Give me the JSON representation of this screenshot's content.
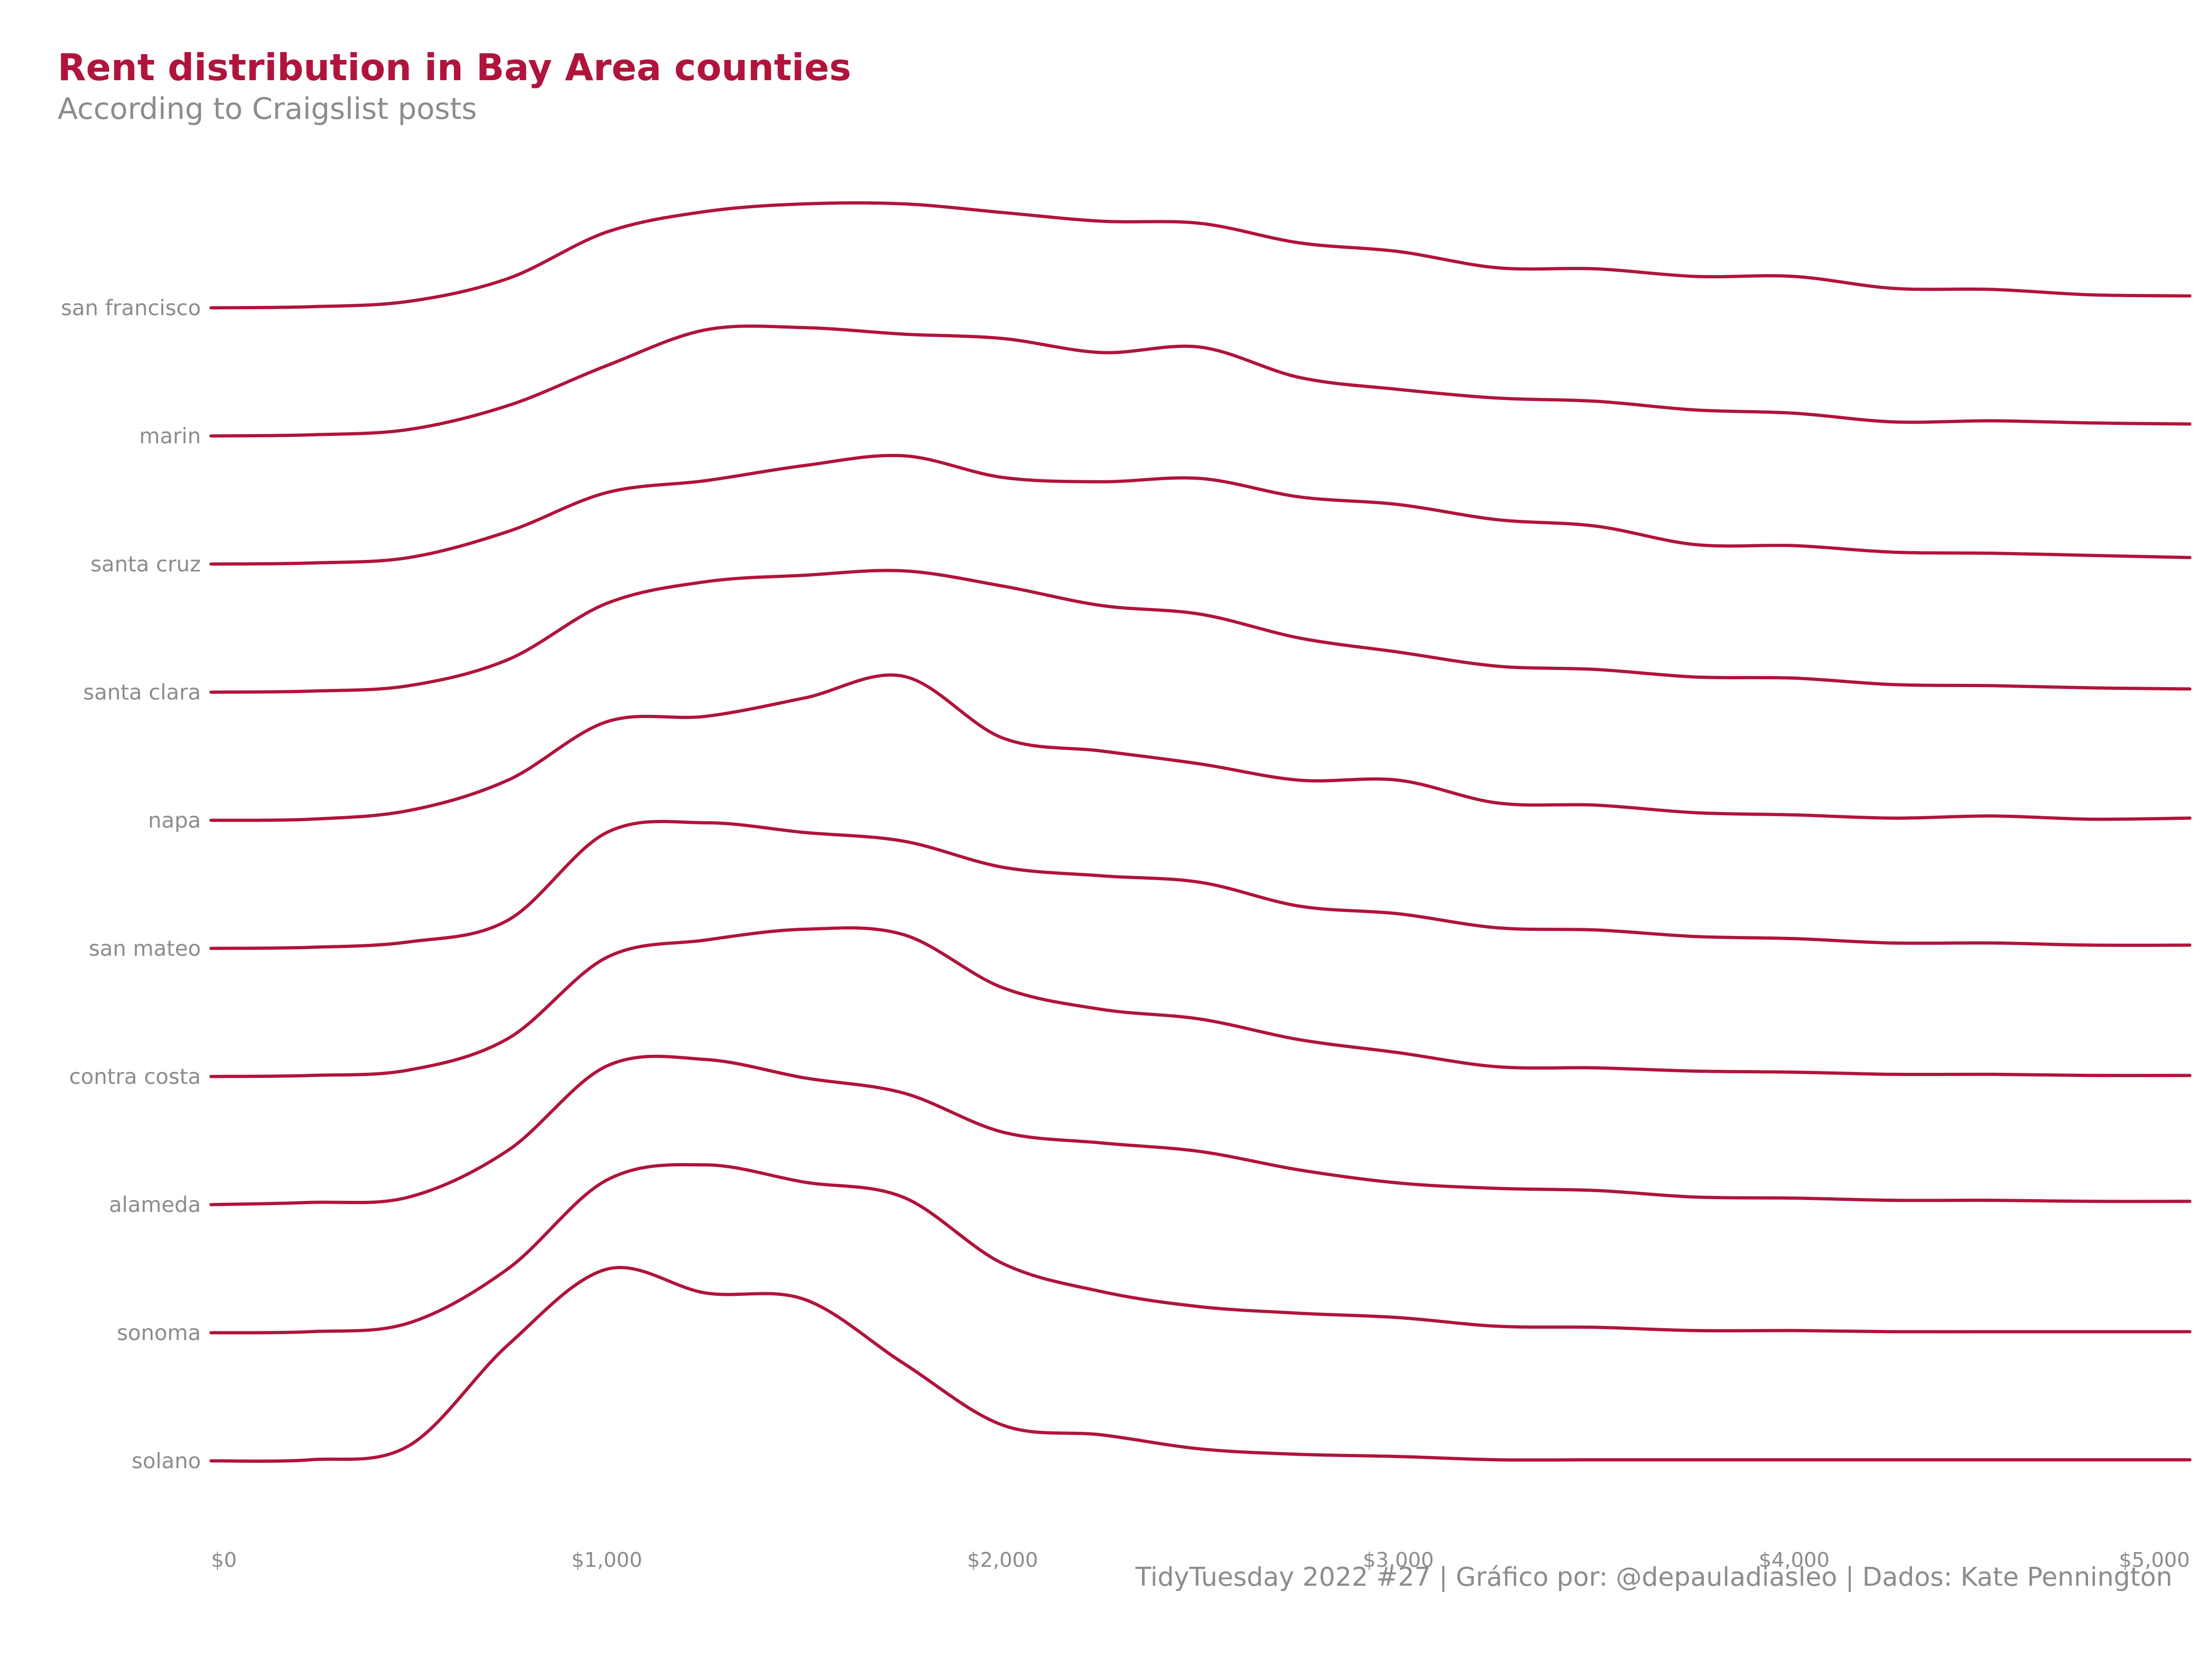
{
  "title": "Rent distribution in Bay Area counties",
  "subtitle": "According to Craigslist posts",
  "caption": "TidyTuesday 2022 #27 | Gráfico por: @depauladiasleo | Dados: Kate Pennington",
  "colors": {
    "accent": "#b0143c",
    "text": "#8c8c8c",
    "background": "#ffffff"
  },
  "chart_data": {
    "type": "ridgeline",
    "xlim": [
      0,
      5000
    ],
    "x_ticks": [
      0,
      1000,
      2000,
      3000,
      4000,
      5000
    ],
    "x_tick_labels": [
      "$0",
      "$1,000",
      "$2,000",
      "$3,000",
      "$4,000",
      "$5,000"
    ],
    "grid": false,
    "x": [
      0,
      250,
      500,
      750,
      1000,
      1250,
      1500,
      1750,
      2000,
      2250,
      2500,
      2750,
      3000,
      3250,
      3500,
      3750,
      4000,
      4250,
      4500,
      4750,
      5000
    ],
    "series": [
      {
        "name": "san francisco",
        "values": [
          0,
          0.01,
          0.06,
          0.27,
          0.7,
          0.89,
          0.96,
          0.96,
          0.88,
          0.8,
          0.78,
          0.6,
          0.52,
          0.37,
          0.36,
          0.29,
          0.29,
          0.18,
          0.17,
          0.12,
          0.11
        ]
      },
      {
        "name": "marin",
        "values": [
          0,
          0.01,
          0.06,
          0.28,
          0.65,
          0.98,
          1.0,
          0.94,
          0.9,
          0.77,
          0.82,
          0.54,
          0.43,
          0.35,
          0.32,
          0.24,
          0.21,
          0.13,
          0.14,
          0.12,
          0.11
        ]
      },
      {
        "name": "santa cruz",
        "values": [
          0,
          0.01,
          0.06,
          0.3,
          0.66,
          0.77,
          0.91,
          1.0,
          0.8,
          0.76,
          0.79,
          0.62,
          0.55,
          0.41,
          0.35,
          0.18,
          0.17,
          0.11,
          0.1,
          0.08,
          0.06
        ]
      },
      {
        "name": "santa clara",
        "values": [
          0,
          0.01,
          0.06,
          0.3,
          0.82,
          1.02,
          1.08,
          1.12,
          0.98,
          0.8,
          0.72,
          0.5,
          0.37,
          0.24,
          0.21,
          0.14,
          0.13,
          0.07,
          0.06,
          0.04,
          0.03
        ]
      },
      {
        "name": "napa",
        "values": [
          0,
          0.01,
          0.09,
          0.37,
          0.91,
          0.96,
          1.13,
          1.33,
          0.76,
          0.64,
          0.52,
          0.37,
          0.37,
          0.16,
          0.14,
          0.07,
          0.05,
          0.02,
          0.04,
          0.01,
          0.02
        ]
      },
      {
        "name": "san mateo",
        "values": [
          0,
          0.01,
          0.06,
          0.26,
          1.07,
          1.16,
          1.07,
          0.99,
          0.75,
          0.67,
          0.61,
          0.39,
          0.32,
          0.19,
          0.17,
          0.11,
          0.09,
          0.05,
          0.05,
          0.03,
          0.03
        ]
      },
      {
        "name": "contra costa",
        "values": [
          0,
          0.01,
          0.06,
          0.35,
          1.1,
          1.26,
          1.36,
          1.31,
          0.82,
          0.62,
          0.53,
          0.34,
          0.22,
          0.09,
          0.08,
          0.05,
          0.04,
          0.02,
          0.02,
          0.01,
          0.01
        ]
      },
      {
        "name": "alameda",
        "values": [
          0,
          0.02,
          0.07,
          0.5,
          1.28,
          1.34,
          1.17,
          1.03,
          0.67,
          0.57,
          0.49,
          0.32,
          0.2,
          0.15,
          0.13,
          0.07,
          0.06,
          0.04,
          0.04,
          0.03,
          0.03
        ]
      },
      {
        "name": "sonoma",
        "values": [
          0,
          0.01,
          0.09,
          0.59,
          1.41,
          1.55,
          1.39,
          1.25,
          0.64,
          0.38,
          0.24,
          0.18,
          0.14,
          0.06,
          0.05,
          0.02,
          0.02,
          0.01,
          0.01,
          0.01,
          0.01
        ]
      },
      {
        "name": "solano",
        "values": [
          0,
          0.01,
          0.14,
          1.07,
          1.77,
          1.55,
          1.49,
          0.9,
          0.33,
          0.24,
          0.11,
          0.06,
          0.04,
          0.01,
          0.01,
          0.01,
          0.01,
          0.01,
          0.01,
          0.01,
          0.01
        ]
      }
    ]
  }
}
